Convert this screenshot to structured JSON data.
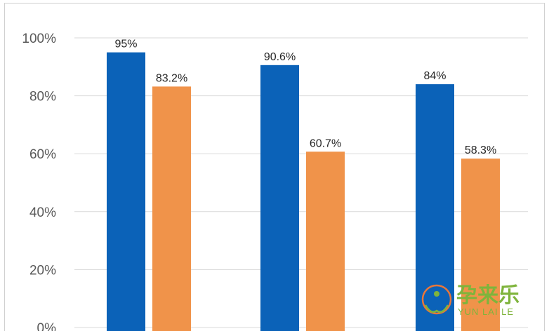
{
  "chart_data": {
    "type": "bar",
    "title": "",
    "xlabel": "",
    "ylabel": "",
    "ylim": [
      0,
      100
    ],
    "y_ticks": [
      "0%",
      "20%",
      "40%",
      "60%",
      "80%",
      "100%"
    ],
    "categories": [
      "",
      "",
      ""
    ],
    "series": [
      {
        "color": "#0b62b8",
        "values": [
          95,
          90.6,
          84
        ],
        "labels": [
          "95%",
          "90.6%",
          "84%"
        ]
      },
      {
        "color": "#f0934a",
        "values": [
          83.2,
          60.7,
          58.3
        ],
        "labels": [
          "83.2%",
          "60.7%",
          "58.3%"
        ]
      }
    ],
    "grid": true,
    "legend": "none"
  },
  "watermark": {
    "chinese": "孕来乐",
    "english": "YUN LAI LE",
    "color": "#7fb43c",
    "accent": "#e8763a"
  }
}
